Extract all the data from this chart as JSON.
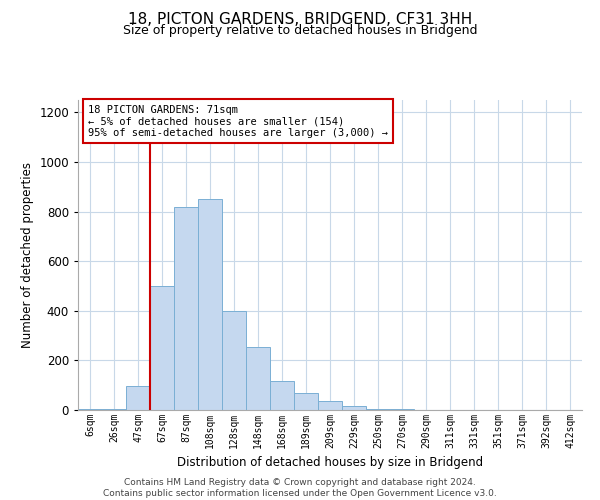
{
  "title": "18, PICTON GARDENS, BRIDGEND, CF31 3HH",
  "subtitle": "Size of property relative to detached houses in Bridgend",
  "xlabel": "Distribution of detached houses by size in Bridgend",
  "ylabel": "Number of detached properties",
  "bar_labels": [
    "6sqm",
    "26sqm",
    "47sqm",
    "67sqm",
    "87sqm",
    "108sqm",
    "128sqm",
    "148sqm",
    "168sqm",
    "189sqm",
    "209sqm",
    "229sqm",
    "250sqm",
    "270sqm",
    "290sqm",
    "311sqm",
    "331sqm",
    "351sqm",
    "371sqm",
    "392sqm",
    "412sqm"
  ],
  "bar_values": [
    5,
    5,
    95,
    500,
    820,
    850,
    400,
    255,
    115,
    70,
    35,
    15,
    5,
    5,
    0,
    0,
    0,
    0,
    0,
    0,
    0
  ],
  "bar_color": "#c5d8ef",
  "bar_edge_color": "#7aafd4",
  "vline_x": 3,
  "vline_color": "#cc0000",
  "annotation_title": "18 PICTON GARDENS: 71sqm",
  "annotation_line1": "← 5% of detached houses are smaller (154)",
  "annotation_line2": "95% of semi-detached houses are larger (3,000) →",
  "annotation_box_color": "#ffffff",
  "annotation_box_edge": "#cc0000",
  "ylim": [
    0,
    1250
  ],
  "yticks": [
    0,
    200,
    400,
    600,
    800,
    1000,
    1200
  ],
  "footer_line1": "Contains HM Land Registry data © Crown copyright and database right 2024.",
  "footer_line2": "Contains public sector information licensed under the Open Government Licence v3.0.",
  "bg_color": "#ffffff",
  "grid_color": "#c8d8e8"
}
